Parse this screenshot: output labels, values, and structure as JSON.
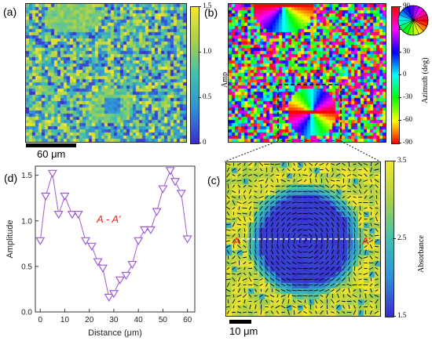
{
  "panels": {
    "a": {
      "letter": "(a)",
      "colorbar": {
        "label": "Amp",
        "ticks": [
          "1.5",
          "1.0",
          "0.5",
          "0"
        ],
        "tick_values": [
          1.5,
          1.0,
          0.5,
          0
        ],
        "range": [
          0,
          1.5
        ],
        "colors": [
          "#3b2bd0",
          "#2f8fd8",
          "#3ec1b0",
          "#a8d04a",
          "#f5e62a"
        ]
      },
      "scalebar": {
        "label": "60 μm"
      }
    },
    "b": {
      "letter": "(b)",
      "colorbar": {
        "label": "Azimuth (deg)",
        "ticks": [
          "90",
          "60",
          "30",
          "0",
          "-30",
          "-60",
          "-90"
        ],
        "tick_values": [
          90,
          60,
          30,
          0,
          -30,
          -60,
          -90
        ],
        "range": [
          -90,
          90
        ]
      },
      "color_wheel": "hue-wheel"
    },
    "c": {
      "letter": "(c)",
      "colorbar": {
        "label": "Absorbance",
        "ticks": [
          "3.5",
          "2.5",
          "1.5"
        ],
        "tick_values": [
          3.5,
          2.5,
          1.5
        ],
        "range": [
          1.5,
          3.5
        ],
        "colors": [
          "#3b2bd0",
          "#2f8fd8",
          "#3ec1b0",
          "#a8d04a",
          "#f5e62a"
        ]
      },
      "line_labels": {
        "left": "A",
        "right": "A'"
      },
      "scalebar": {
        "label": "10 μm"
      }
    },
    "d": {
      "letter": "(d)",
      "annotation": "A - A'",
      "colors": {
        "series": "#a05ad8",
        "annotation": "#e8251e"
      }
    }
  },
  "chart_data": {
    "type": "line",
    "xlabel": "Distance (μm)",
    "ylabel": "Amplitude",
    "xlim": [
      -2,
      63
    ],
    "ylim": [
      0,
      1.6
    ],
    "xticks": [
      0,
      10,
      20,
      30,
      40,
      50,
      60
    ],
    "yticks": [
      0.0,
      0.5,
      1.0,
      1.5
    ],
    "x": [
      0,
      2.2,
      5,
      7.5,
      10,
      13,
      15.5,
      18.5,
      21,
      23.5,
      25.5,
      28,
      30,
      32.5,
      35,
      37.5,
      40,
      42.5,
      45,
      47.5,
      50,
      53,
      55,
      57.5,
      60
    ],
    "y": [
      0.78,
      1.27,
      1.52,
      1.07,
      1.27,
      1.07,
      1.07,
      0.78,
      0.72,
      0.55,
      0.48,
      0.16,
      0.2,
      0.35,
      0.4,
      0.52,
      0.78,
      0.9,
      0.9,
      1.1,
      1.35,
      1.55,
      1.43,
      1.3,
      0.8
    ],
    "marker": "triangle-down"
  }
}
